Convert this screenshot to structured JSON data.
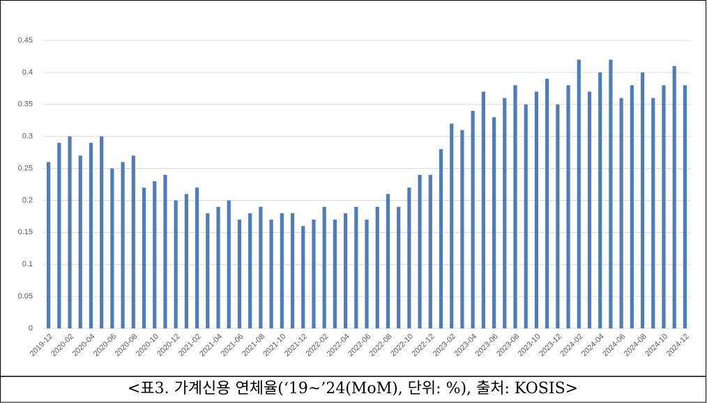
{
  "chart_data": {
    "type": "bar",
    "caption": "<표3. 가계신용 연체율(‘19~’24(MoM), 단위: %), 출처: KOSIS>",
    "categories": [
      "2019-12",
      null,
      "2020-02",
      null,
      "2020-04",
      null,
      "2020-06",
      null,
      "2020-08",
      null,
      "2020-10",
      null,
      "2020-12",
      null,
      "2021-02",
      null,
      "2021-04",
      null,
      "2021-06",
      null,
      "2021-08",
      null,
      "2021-10",
      null,
      "2021-12",
      null,
      "2022-02",
      null,
      "2022-04",
      null,
      "2022-06",
      null,
      "2022-08",
      null,
      "2022-10",
      null,
      "2022-12",
      null,
      "2023-02",
      null,
      "2023-04",
      null,
      "2023-06",
      null,
      "2023-08",
      null,
      "2023-10",
      null,
      "2023-12",
      null,
      "2024-02",
      null,
      "2024-04",
      null,
      "2024-06",
      null,
      "2024-08",
      null,
      "2024-10",
      null,
      "2024-12"
    ],
    "values": [
      0.26,
      0.29,
      0.3,
      0.27,
      0.29,
      0.3,
      0.25,
      0.26,
      0.27,
      0.22,
      0.23,
      0.24,
      0.2,
      0.21,
      0.22,
      0.18,
      0.19,
      0.2,
      0.17,
      0.18,
      0.19,
      0.17,
      0.18,
      0.18,
      0.16,
      0.17,
      0.19,
      0.17,
      0.18,
      0.19,
      0.17,
      0.19,
      0.21,
      0.19,
      0.22,
      0.24,
      0.24,
      0.28,
      0.32,
      0.31,
      0.34,
      0.37,
      0.33,
      0.36,
      0.38,
      0.35,
      0.37,
      0.39,
      0.35,
      0.38,
      0.42,
      0.37,
      0.4,
      0.42,
      0.36,
      0.38,
      0.4,
      0.36,
      0.38,
      0.41,
      0.38
    ],
    "color": "#4f7dbb",
    "ylim": [
      0,
      0.45
    ],
    "yticks": [
      0,
      0.05,
      0.1,
      0.15,
      0.2,
      0.25,
      0.3,
      0.35,
      0.4,
      0.45
    ],
    "grid": true
  }
}
